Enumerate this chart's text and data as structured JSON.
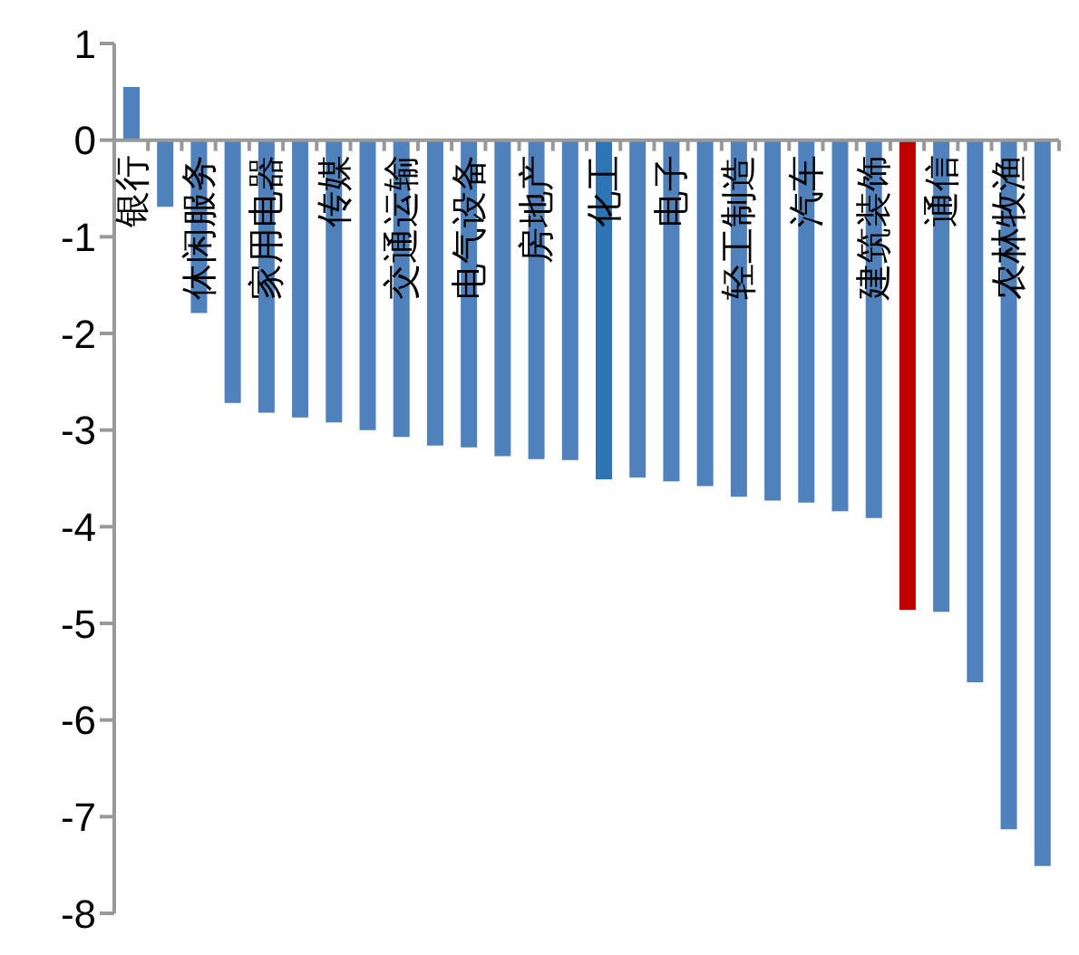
{
  "chart_data": {
    "type": "bar",
    "categories": [
      "银行",
      null,
      "休闲服务",
      null,
      "家用电器",
      null,
      "传媒",
      null,
      "交通运输",
      null,
      "电气设备",
      null,
      "房地产",
      null,
      "化工",
      null,
      "电子",
      null,
      "轻工制造",
      null,
      "汽车",
      null,
      "建筑装饰",
      null,
      "通信",
      null,
      "农林牧渔",
      null
    ],
    "values": [
      0.55,
      -0.69,
      -1.79,
      -2.72,
      -2.82,
      -2.87,
      -2.92,
      -3.0,
      -3.07,
      -3.16,
      -3.18,
      -3.27,
      -3.3,
      -3.31,
      -3.51,
      -3.49,
      -3.53,
      -3.58,
      -3.69,
      -3.73,
      -3.75,
      -3.84,
      -3.91,
      -4.86,
      -4.88,
      -5.61,
      -7.13,
      -7.51
    ],
    "colors": [
      "#4f81bd",
      "#4f81bd",
      "#4f81bd",
      "#4f81bd",
      "#4f81bd",
      "#4f81bd",
      "#4f81bd",
      "#4f81bd",
      "#4f81bd",
      "#4f81bd",
      "#4f81bd",
      "#4f81bd",
      "#4f81bd",
      "#4f81bd",
      "#2e75b6",
      "#4f81bd",
      "#4f81bd",
      "#4f81bd",
      "#4f81bd",
      "#4f81bd",
      "#4f81bd",
      "#4f81bd",
      "#4f81bd",
      "#c00000",
      "#4f81bd",
      "#4f81bd",
      "#4f81bd",
      "#4f81bd"
    ],
    "ylim": [
      -8,
      1
    ],
    "yticks": [
      -8,
      -7,
      -6,
      -5,
      -4,
      -3,
      -2,
      -1,
      0,
      1
    ],
    "grid": false,
    "legend": false
  }
}
